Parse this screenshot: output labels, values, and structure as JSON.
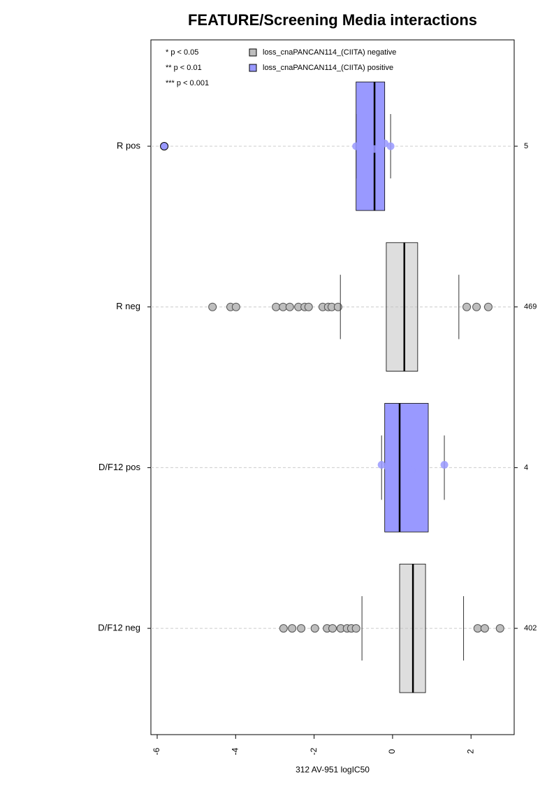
{
  "chart_data": {
    "type": "box",
    "title": "FEATURE/Screening Media interactions",
    "x_label": "312 AV-951 logIC50",
    "categories": [
      "R pos",
      "R neg",
      "D/F12 pos",
      "D/F12 neg"
    ],
    "counts": [
      5,
      469,
      4,
      402
    ],
    "notes": [
      "* p < 0.05",
      "** p < 0.01",
      "*** p < 0.001"
    ],
    "xlim": [
      -6.16,
      3.1
    ],
    "xticks": [
      -6,
      -4,
      -2,
      0,
      2
    ],
    "grid": true,
    "series": [
      {
        "name": "loss_cnaPANCAN114_(CIITA) negative",
        "color": "#bebebe",
        "boxes": [
          null,
          {
            "whislo": -1.33,
            "q1": -0.16,
            "med": 0.3,
            "q3": 0.64,
            "whishi": 1.69,
            "points": [
              -4.59,
              -4.13,
              -3.99,
              -2.97,
              -2.79,
              -2.62,
              -2.4,
              -2.24,
              -2.14,
              -1.78,
              -1.64,
              -1.55,
              -1.39,
              1.89,
              2.14,
              2.44
            ]
          },
          null,
          {
            "whislo": -0.78,
            "q1": 0.18,
            "med": 0.52,
            "q3": 0.84,
            "whishi": 1.81,
            "points": [
              -2.78,
              -2.56,
              -2.33,
              -1.98,
              -1.67,
              -1.53,
              -1.32,
              -1.16,
              -1.05,
              -0.93,
              2.17,
              2.35,
              2.74
            ]
          }
        ]
      },
      {
        "name": "loss_cnaPANCAN114_(CIITA) positive",
        "color": "#9999ff",
        "boxes": [
          {
            "whislo": -0.93,
            "q1": -0.93,
            "med": -0.46,
            "q3": -0.2,
            "whishi": -0.05,
            "points": [
              -5.82,
              -0.93,
              -0.46,
              -0.2,
              -0.05
            ]
          },
          null,
          {
            "whislo": -0.28,
            "q1": -0.2,
            "med": 0.18,
            "q3": 0.91,
            "whishi": 1.32,
            "points": [
              -0.28,
              -0.11,
              0.48,
              1.32
            ]
          },
          null
        ]
      }
    ]
  }
}
